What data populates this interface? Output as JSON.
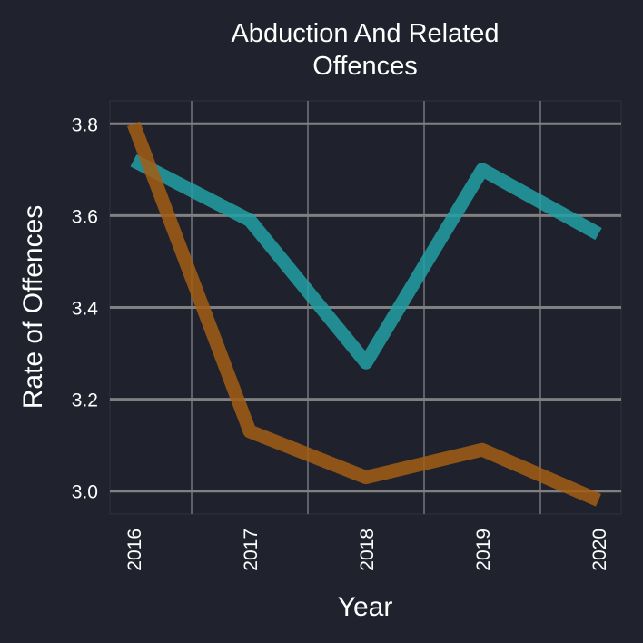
{
  "chart_data": {
    "type": "line",
    "title_lines": [
      "Abduction And Related",
      "Offences"
    ],
    "xlabel": "Year",
    "ylabel": "Rate of Offences",
    "x": [
      "2016",
      "2017",
      "2018",
      "2019",
      "2020"
    ],
    "yticks": [
      "3.0",
      "3.2",
      "3.4",
      "3.6",
      "3.8"
    ],
    "ylim": [
      2.95,
      3.85
    ],
    "grid": true,
    "legend": false,
    "series": [
      {
        "values": [
          3.72,
          3.59,
          3.28,
          3.7,
          3.56
        ],
        "color": "#22a0a4"
      },
      {
        "values": [
          3.8,
          3.13,
          3.03,
          3.09,
          2.98
        ],
        "color": "#a35d14"
      }
    ]
  },
  "colors": {
    "background": "#20232e",
    "plot_background": "#1f222c",
    "grid_major": "#808080",
    "grid_minor": "#5f6168",
    "text": "#ffffff"
  }
}
